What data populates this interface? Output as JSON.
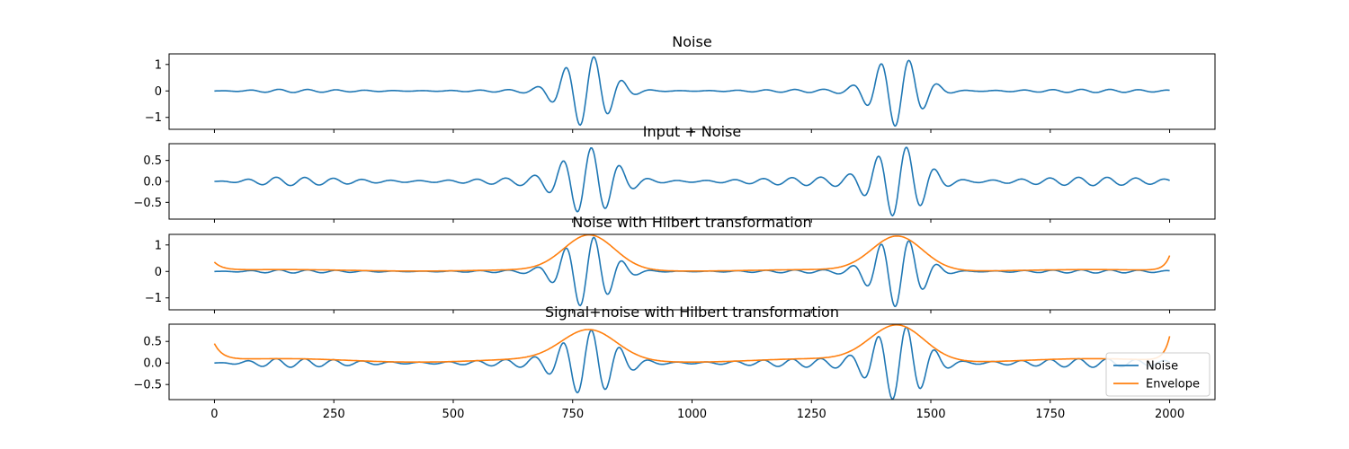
{
  "colors": {
    "noise": "#1f77b4",
    "envelope": "#ff7f0e"
  },
  "chart_data": [
    {
      "type": "line",
      "title": "Noise",
      "xlim": [
        -95,
        2095
      ],
      "ylim": [
        -1.45,
        1.4
      ],
      "yticks": [
        1,
        0,
        -1
      ],
      "yticklabels": [
        "1",
        "0",
        "−1"
      ],
      "show_xticklabels": false,
      "series": [
        {
          "key": "noise",
          "color": "#1f77b4",
          "signal": {
            "packets": [
              [
                780,
                1.3
              ],
              [
                1430,
                1.3
              ]
            ],
            "width": 65,
            "floor": 0.06,
            "period": 60,
            "phase": 0
          }
        }
      ]
    },
    {
      "type": "line",
      "title": "Input + Noise",
      "xlim": [
        -95,
        2095
      ],
      "ylim": [
        -0.9,
        0.9
      ],
      "yticks": [
        0.5,
        0.0,
        -0.5
      ],
      "yticklabels": [
        "0.5",
        "0.0",
        "−0.5"
      ],
      "show_xticklabels": false,
      "series": [
        {
          "key": "noise",
          "color": "#1f77b4",
          "signal": {
            "packets": [
              [
                785,
                0.72
              ],
              [
                1435,
                0.8
              ]
            ],
            "width": 70,
            "floor": 0.1,
            "period": 60,
            "phase": 0.6
          }
        }
      ]
    },
    {
      "type": "line",
      "title": "Noise with Hilbert transformation",
      "xlim": [
        -95,
        2095
      ],
      "ylim": [
        -1.45,
        1.4
      ],
      "yticks": [
        1,
        0,
        -1
      ],
      "yticklabels": [
        "1",
        "0",
        "−1"
      ],
      "show_xticklabels": false,
      "series": [
        {
          "key": "noise",
          "color": "#1f77b4",
          "signal": {
            "packets": [
              [
                780,
                1.3
              ],
              [
                1430,
                1.3
              ]
            ],
            "width": 65,
            "floor": 0.06,
            "period": 60,
            "phase": 0
          }
        },
        {
          "key": "envelope",
          "color": "#ff7f0e",
          "signal": {
            "packets": [
              [
                785,
                1.32
              ],
              [
                1430,
                1.3
              ]
            ],
            "width": 75,
            "floor": 0.07,
            "envelope": true,
            "start": 0.35,
            "end": 0.6
          }
        }
      ]
    },
    {
      "type": "line",
      "title": "Signal+noise with Hilbert transformation",
      "xlim": [
        -95,
        2095
      ],
      "ylim": [
        -0.85,
        0.9
      ],
      "yticks": [
        0.5,
        0.0,
        -0.5
      ],
      "yticklabels": [
        "0.5",
        "0.0",
        "−0.5"
      ],
      "show_xticklabels": true,
      "xticks": [
        0,
        250,
        500,
        750,
        1000,
        1250,
        1500,
        1750,
        2000
      ],
      "xticklabels": [
        "0",
        "250",
        "500",
        "750",
        "1000",
        "1250",
        "1500",
        "1750",
        "2000"
      ],
      "legend": {
        "placement": "lower-right",
        "entries": [
          "Noise",
          "Envelope"
        ]
      },
      "series": [
        {
          "key": "noise",
          "color": "#1f77b4",
          "name": "Noise",
          "signal": {
            "packets": [
              [
                785,
                0.68
              ],
              [
                1435,
                0.82
              ]
            ],
            "width": 70,
            "floor": 0.1,
            "period": 60,
            "phase": 0.6
          }
        },
        {
          "key": "envelope",
          "color": "#ff7f0e",
          "name": "Envelope",
          "signal": {
            "packets": [
              [
                785,
                0.69
              ],
              [
                1430,
                0.83
              ]
            ],
            "width": 80,
            "floor": 0.1,
            "envelope": true,
            "start": 0.45,
            "end": 0.62
          }
        }
      ]
    }
  ]
}
